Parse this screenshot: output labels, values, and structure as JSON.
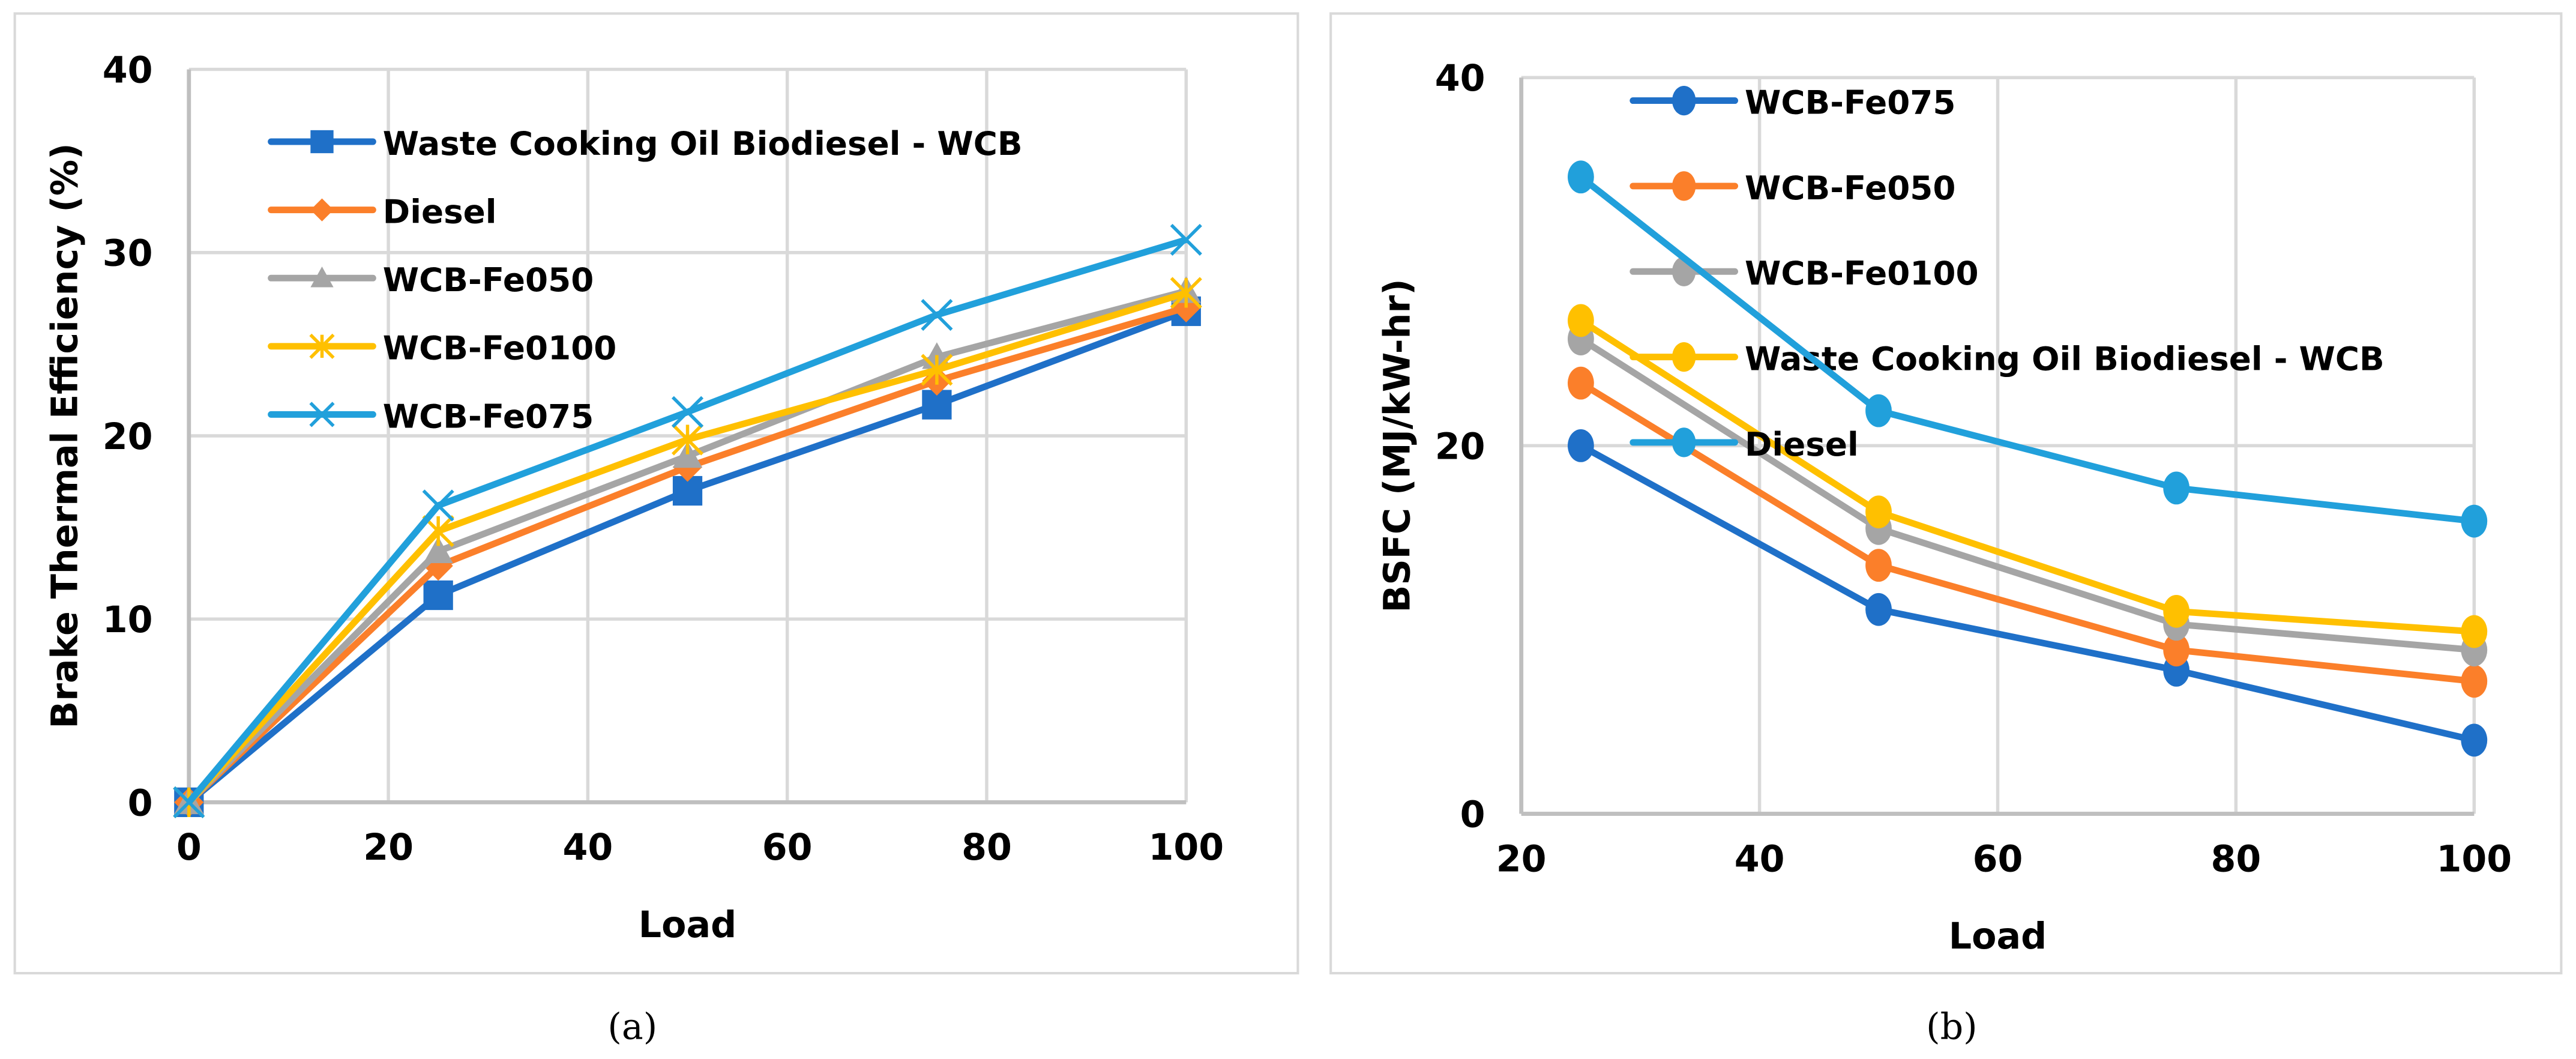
{
  "chart_data": [
    {
      "type": "line",
      "caption": "(a)",
      "xlabel": "Load",
      "ylabel": "Brake Thermal Efficiency (%)",
      "xlim": [
        0,
        100
      ],
      "ylim": [
        0,
        40
      ],
      "xticks": [
        "0",
        "20",
        "40",
        "60",
        "80",
        "100"
      ],
      "yticks": [
        "0",
        "10",
        "20",
        "30",
        "40"
      ],
      "grid": true,
      "legend": "top-left",
      "x": [
        0,
        25,
        50,
        75,
        100
      ],
      "series": [
        {
          "name": "Waste Cooking Oil Biodiesel - WCB",
          "color": "#1f70c8",
          "marker": "square",
          "values": [
            0,
            11.3,
            17.0,
            21.7,
            26.8
          ]
        },
        {
          "name": "Diesel",
          "color": "#fb7f2a",
          "marker": "diamond",
          "values": [
            0,
            12.9,
            18.3,
            23.0,
            27.0
          ]
        },
        {
          "name": "WCB-Fe050",
          "color": "#a5a5a5",
          "marker": "triangle",
          "values": [
            0,
            13.7,
            18.9,
            24.3,
            27.9
          ]
        },
        {
          "name": "WCB-Fe0100",
          "color": "#ffc000",
          "marker": "star",
          "values": [
            0,
            14.8,
            19.8,
            23.6,
            27.8
          ]
        },
        {
          "name": "WCB-Fe075",
          "color": "#21a0db",
          "marker": "x",
          "values": [
            0,
            16.2,
            21.3,
            26.6,
            30.7
          ]
        }
      ]
    },
    {
      "type": "line",
      "caption": "(b)",
      "xlabel": "Load",
      "ylabel": "BSFC (MJ/kW-hr)",
      "xlim": [
        20,
        100
      ],
      "ylim": [
        0,
        40
      ],
      "xticks": [
        "20",
        "40",
        "60",
        "80",
        "100"
      ],
      "yticks": [
        "0",
        "20",
        "40"
      ],
      "grid": true,
      "legend": "top-left",
      "x": [
        25,
        50,
        75,
        100
      ],
      "series": [
        {
          "name": "WCB-Fe075",
          "color": "#1f70c8",
          "marker": "circle",
          "values": [
            20.0,
            11.1,
            7.8,
            4.0
          ]
        },
        {
          "name": "WCB-Fe050",
          "color": "#fb7f2a",
          "marker": "circle",
          "values": [
            23.4,
            13.5,
            8.9,
            7.2
          ]
        },
        {
          "name": "WCB-Fe0100",
          "color": "#a5a5a5",
          "marker": "circle",
          "values": [
            25.8,
            15.5,
            10.3,
            8.9
          ]
        },
        {
          "name": "Waste Cooking Oil Biodiesel - WCB",
          "color": "#ffc000",
          "marker": "circle",
          "values": [
            26.8,
            16.4,
            11.0,
            9.9
          ]
        },
        {
          "name": "Diesel",
          "color": "#21a0db",
          "marker": "circle",
          "values": [
            34.6,
            21.9,
            17.7,
            15.9
          ]
        }
      ]
    }
  ]
}
